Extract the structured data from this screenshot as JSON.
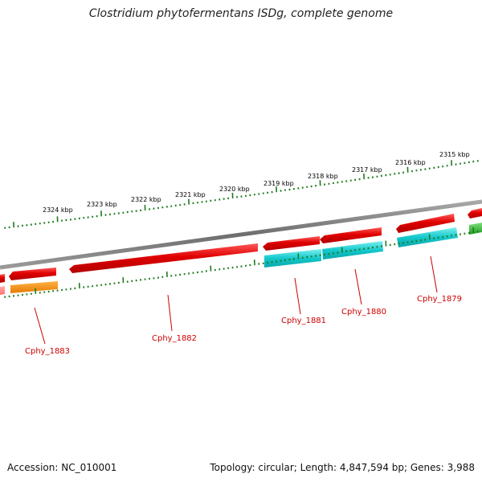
{
  "title": "Clostridium phytofermentans ISDg, complete genome",
  "footer": {
    "accession": "Accession: NC_010001",
    "summary": "Topology: circular; Length: 4,847,594 bp; Genes: 3,988"
  },
  "colors": {
    "backbone": "#7d7d7d",
    "ticks": "#1f7a1f",
    "label_text": "#cc0000",
    "leader": "#cc0000"
  },
  "kbp_labels": [
    "2324 kbp",
    "2323 kbp",
    "2322 kbp",
    "2321 kbp",
    "2320 kbp",
    "2319 kbp",
    "2318 kbp",
    "2317 kbp",
    "2316 kbp",
    "2315 kbp"
  ],
  "genes": [
    {
      "label": "Cphy_1883",
      "color": "#cc0000"
    },
    {
      "label": "Cphy_1882",
      "color": "#cc0000"
    },
    {
      "label": "Cphy_1881",
      "color": "#cc0000"
    },
    {
      "label": "Cphy_1880",
      "color": "#cc0000"
    },
    {
      "label": "Cphy_1879",
      "color": "#cc0000"
    }
  ]
}
